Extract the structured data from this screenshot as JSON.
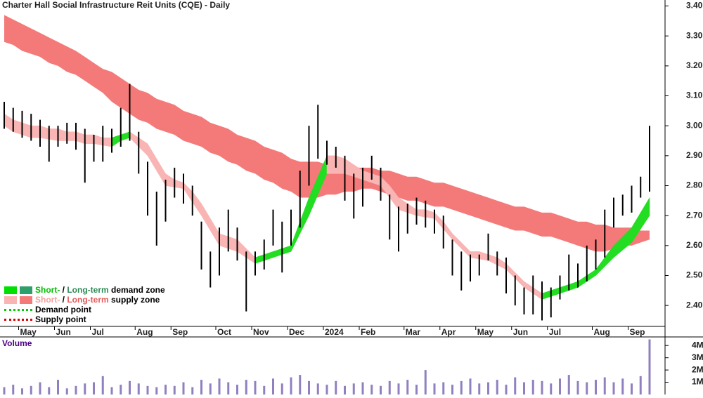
{
  "chart_data": [
    {
      "type": "ohlc",
      "title": "Charter Hall Social Infrastructure Reit Units (CQE) - Daily",
      "categories": [
        null,
        null,
        "May",
        null,
        null,
        null,
        "Jun",
        null,
        null,
        null,
        "Jul",
        null,
        null,
        null,
        null,
        "Aug",
        null,
        null,
        null,
        "Sep",
        null,
        null,
        null,
        null,
        "Oct",
        null,
        null,
        null,
        "Nov",
        null,
        null,
        null,
        "Dec",
        null,
        null,
        null,
        "2024",
        null,
        null,
        null,
        "Feb",
        null,
        null,
        null,
        null,
        "Mar",
        null,
        null,
        null,
        "Apr",
        null,
        null,
        null,
        "May",
        null,
        null,
        null,
        "Jun",
        null,
        null,
        null,
        "Jul",
        null,
        null,
        null,
        null,
        "Aug",
        null,
        null,
        null,
        "Sep",
        null,
        null
      ],
      "high": [
        3.08,
        3.06,
        3.05,
        3.04,
        3.02,
        3.0,
        3.0,
        3.01,
        3.01,
        2.99,
        2.97,
        3.0,
        2.99,
        3.06,
        3.14,
        2.98,
        2.88,
        2.78,
        2.82,
        2.86,
        2.84,
        2.8,
        2.68,
        2.58,
        2.66,
        2.72,
        2.66,
        2.58,
        2.58,
        2.62,
        2.72,
        2.68,
        2.72,
        2.85,
        3.0,
        3.07,
        2.95,
        2.93,
        2.9,
        2.84,
        2.86,
        2.9,
        2.86,
        2.77,
        2.73,
        2.74,
        2.76,
        2.75,
        2.72,
        2.7,
        2.62,
        2.58,
        2.57,
        2.57,
        2.64,
        2.58,
        2.56,
        2.5,
        2.46,
        2.5,
        2.48,
        2.46,
        2.5,
        2.57,
        2.54,
        2.6,
        2.62,
        2.72,
        2.76,
        2.77,
        2.8,
        2.83,
        3.0
      ],
      "low": [
        2.99,
        2.98,
        2.96,
        2.95,
        2.93,
        2.88,
        2.93,
        2.94,
        2.92,
        2.81,
        2.88,
        2.88,
        2.91,
        2.93,
        2.95,
        2.84,
        2.7,
        2.6,
        2.68,
        2.76,
        2.74,
        2.7,
        2.52,
        2.46,
        2.5,
        2.58,
        2.55,
        2.38,
        2.5,
        2.52,
        2.6,
        2.51,
        2.6,
        2.66,
        2.8,
        2.89,
        2.87,
        2.86,
        2.75,
        2.69,
        2.73,
        2.82,
        2.75,
        2.62,
        2.58,
        2.64,
        2.67,
        2.66,
        2.64,
        2.59,
        2.5,
        2.45,
        2.48,
        2.5,
        2.55,
        2.5,
        2.44,
        2.4,
        2.37,
        2.37,
        2.35,
        2.36,
        2.42,
        2.45,
        2.46,
        2.48,
        2.52,
        2.56,
        2.66,
        2.7,
        2.71,
        2.76,
        2.78
      ],
      "long_term_zone": {
        "upper": [
          3.37,
          3.355,
          3.34,
          3.325,
          3.31,
          3.295,
          3.28,
          3.265,
          3.25,
          3.23,
          3.21,
          3.19,
          3.18,
          3.16,
          3.14,
          3.12,
          3.11,
          3.09,
          3.08,
          3.07,
          3.05,
          3.04,
          3.03,
          3.01,
          3.0,
          2.99,
          2.97,
          2.96,
          2.95,
          2.93,
          2.92,
          2.91,
          2.89,
          2.88,
          2.88,
          2.88,
          2.87,
          2.87,
          2.87,
          2.86,
          2.86,
          2.86,
          2.85,
          2.85,
          2.84,
          2.83,
          2.83,
          2.82,
          2.81,
          2.81,
          2.8,
          2.79,
          2.78,
          2.77,
          2.76,
          2.75,
          2.74,
          2.73,
          2.73,
          2.72,
          2.71,
          2.71,
          2.7,
          2.69,
          2.68,
          2.68,
          2.67,
          2.67,
          2.66,
          2.66,
          2.66,
          2.65,
          2.65
        ],
        "lower": [
          3.28,
          3.27,
          3.25,
          3.24,
          3.23,
          3.21,
          3.2,
          3.18,
          3.17,
          3.15,
          3.13,
          3.11,
          3.08,
          3.06,
          3.04,
          3.02,
          3.01,
          2.99,
          2.98,
          2.97,
          2.95,
          2.94,
          2.93,
          2.91,
          2.9,
          2.88,
          2.87,
          2.85,
          2.84,
          2.82,
          2.81,
          2.79,
          2.78,
          2.76,
          2.76,
          2.76,
          2.77,
          2.77,
          2.78,
          2.78,
          2.79,
          2.79,
          2.78,
          2.77,
          2.76,
          2.75,
          2.75,
          2.74,
          2.73,
          2.73,
          2.72,
          2.71,
          2.7,
          2.69,
          2.68,
          2.67,
          2.66,
          2.65,
          2.65,
          2.64,
          2.63,
          2.63,
          2.62,
          2.61,
          2.6,
          2.59,
          2.58,
          2.58,
          2.59,
          2.6,
          2.6,
          2.61,
          2.62
        ]
      },
      "short_term_zone": {
        "upper": [
          3.04,
          3.02,
          3.01,
          3.0,
          3.0,
          2.99,
          2.99,
          2.98,
          2.98,
          2.97,
          2.97,
          2.96,
          2.96,
          2.97,
          2.98,
          2.96,
          2.94,
          2.89,
          2.84,
          2.82,
          2.81,
          2.78,
          2.74,
          2.69,
          2.64,
          2.63,
          2.62,
          2.59,
          2.56,
          2.57,
          2.58,
          2.59,
          2.6,
          2.68,
          2.76,
          2.83,
          2.9,
          2.9,
          2.89,
          2.87,
          2.85,
          2.84,
          2.83,
          2.8,
          2.76,
          2.74,
          2.72,
          2.72,
          2.71,
          2.68,
          2.64,
          2.61,
          2.58,
          2.58,
          2.57,
          2.56,
          2.54,
          2.51,
          2.48,
          2.46,
          2.44,
          2.45,
          2.46,
          2.47,
          2.48,
          2.5,
          2.52,
          2.56,
          2.6,
          2.63,
          2.66,
          2.71,
          2.76
        ],
        "lower": [
          3.0,
          2.98,
          2.97,
          2.96,
          2.96,
          2.955,
          2.95,
          2.95,
          2.95,
          2.94,
          2.94,
          2.935,
          2.93,
          2.95,
          2.96,
          2.93,
          2.9,
          2.85,
          2.8,
          2.795,
          2.79,
          2.745,
          2.7,
          2.65,
          2.6,
          2.59,
          2.58,
          2.56,
          2.54,
          2.55,
          2.56,
          2.57,
          2.58,
          2.64,
          2.7,
          2.77,
          2.84,
          2.84,
          2.84,
          2.83,
          2.82,
          2.81,
          2.8,
          2.76,
          2.72,
          2.71,
          2.7,
          2.695,
          2.69,
          2.655,
          2.62,
          2.59,
          2.56,
          2.555,
          2.55,
          2.535,
          2.52,
          2.49,
          2.46,
          2.44,
          2.42,
          2.43,
          2.44,
          2.45,
          2.46,
          2.48,
          2.5,
          2.53,
          2.56,
          2.585,
          2.61,
          2.655,
          2.7
        ]
      },
      "colors": {
        "bar": "#000000",
        "long_term_zone": "#f47a7a",
        "short_term_supply": "#f9b4b4",
        "short_term_demand": "#22dd22"
      },
      "ylim": [
        2.33,
        3.42
      ],
      "yticks": [
        {
          "value": 2.4,
          "label": "2.40"
        },
        {
          "value": 2.5,
          "label": "2.50"
        },
        {
          "value": 2.6,
          "label": "2.60"
        },
        {
          "value": 2.7,
          "label": "2.70"
        },
        {
          "value": 2.8,
          "label": "2.80"
        },
        {
          "value": 2.9,
          "label": "2.90"
        },
        {
          "value": 3.0,
          "label": "3.00"
        },
        {
          "value": 3.1,
          "label": "3.10"
        },
        {
          "value": 3.2,
          "label": "3.20"
        },
        {
          "value": 3.3,
          "label": "3.30"
        },
        {
          "value": 3.4,
          "label": "3.40"
        }
      ],
      "legend": [
        [
          "Short-",
          " / ",
          "Long-term",
          " demand zone"
        ],
        [
          "Short-",
          " / ",
          "Long-term",
          " supply zone"
        ],
        [
          "Demand point"
        ],
        [
          "Supply point"
        ]
      ]
    },
    {
      "type": "bar",
      "title": "Volume",
      "color": "#9080c0",
      "values": [
        0.6,
        0.8,
        0.5,
        0.7,
        1.0,
        0.6,
        1.2,
        0.5,
        0.7,
        0.9,
        1.0,
        1.5,
        0.6,
        0.8,
        1.1,
        0.9,
        0.7,
        0.6,
        0.8,
        0.7,
        1.0,
        0.6,
        1.2,
        0.9,
        1.3,
        1.0,
        0.8,
        1.2,
        1.1,
        0.7,
        1.3,
        0.9,
        1.4,
        1.6,
        1.1,
        0.9,
        0.8,
        1.1,
        0.7,
        0.9,
        1.0,
        0.8,
        0.7,
        1.1,
        0.9,
        1.2,
        0.8,
        2.0,
        0.9,
        1.0,
        0.8,
        1.1,
        1.3,
        0.9,
        1.0,
        1.2,
        0.8,
        1.4,
        1.0,
        1.2,
        1.1,
        0.9,
        1.3,
        1.6,
        1.1,
        1.0,
        1.2,
        1.4,
        1.0,
        1.3,
        0.9,
        1.5,
        4.5
      ],
      "ylim": [
        0,
        4.7
      ],
      "yticks": [
        {
          "value": 1,
          "label": "1M"
        },
        {
          "value": 2,
          "label": "2M"
        },
        {
          "value": 3,
          "label": "3M"
        },
        {
          "value": 4,
          "label": "4M"
        }
      ]
    }
  ]
}
